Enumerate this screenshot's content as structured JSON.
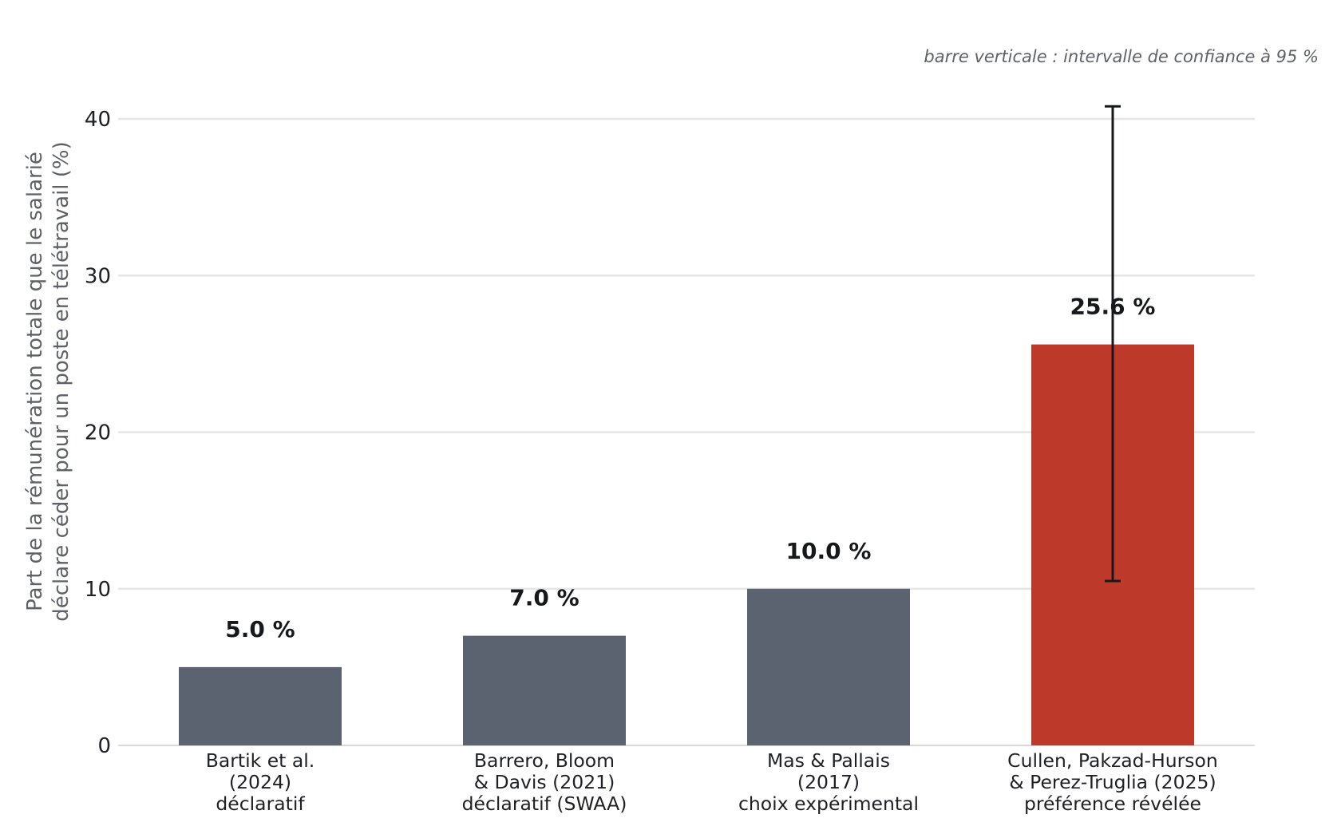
{
  "chart_data": {
    "type": "bar",
    "categories": [
      [
        "Bartik et al.",
        "(2024)",
        "déclaratif"
      ],
      [
        "Barrero, Bloom",
        "& Davis (2021)",
        "déclaratif (SWAA)"
      ],
      [
        "Mas & Pallais",
        "(2017)",
        "choix expérimental"
      ],
      [
        "Cullen, Pakzad-Hurson",
        "& Perez-Truglia (2025)",
        "préférence révélée"
      ]
    ],
    "values": [
      5.0,
      7.0,
      10.0,
      25.6
    ],
    "value_labels": [
      "5.0 %",
      "7.0 %",
      "10.0 %",
      "25.6 %"
    ],
    "bar_colors": [
      "#5c6370",
      "#5c6370",
      "#5c6370",
      "#bd3a2b"
    ],
    "error_bars": [
      null,
      null,
      null,
      {
        "low": 10.5,
        "high": 40.8
      }
    ],
    "ylabel_lines": [
      "Part de la rémunération totale que le salarié",
      "déclare céder pour un poste en télétravail (%)"
    ],
    "yticks": [
      0,
      10,
      20,
      30,
      40
    ],
    "ylim": [
      0,
      42.5
    ],
    "grid": true,
    "note": "barre verticale : intervalle de confiance à 95 %",
    "colors": {
      "grid": "#e6e6e6",
      "axis": "#d9d9d9",
      "error_bar": "#16181c"
    }
  }
}
